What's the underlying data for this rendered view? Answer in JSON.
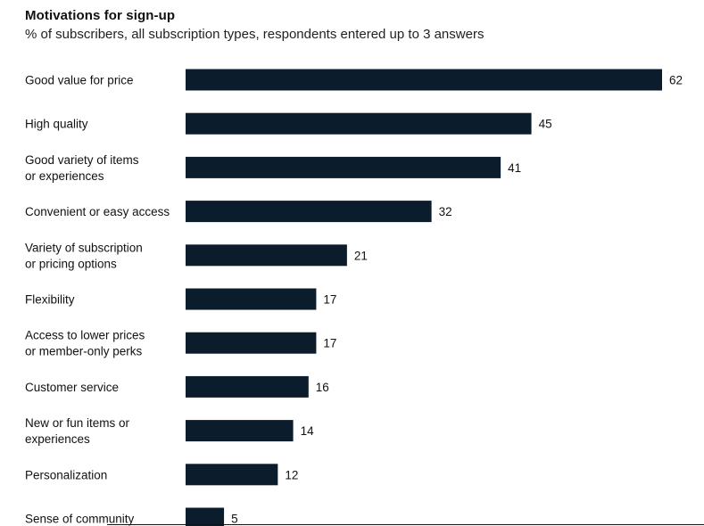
{
  "chart_data": {
    "type": "bar",
    "orientation": "horizontal",
    "title": "Motivations for sign-up",
    "subtitle": "% of subscribers, all subscription types, respondents entered up to 3 answers",
    "categories": [
      [
        "Good value for price"
      ],
      [
        "High quality"
      ],
      [
        "Good variety of items",
        "or experiences"
      ],
      [
        "Convenient or easy access"
      ],
      [
        "Variety of subscription",
        "or pricing options"
      ],
      [
        "Flexibility"
      ],
      [
        "Access to lower prices",
        "or member-only perks"
      ],
      [
        "Customer service"
      ],
      [
        "New or fun items or",
        "experiences"
      ],
      [
        "Personalization"
      ],
      [
        "Sense of community"
      ]
    ],
    "values": [
      62,
      45,
      41,
      32,
      21,
      17,
      17,
      16,
      14,
      12,
      5
    ],
    "xlim": [
      0,
      62
    ],
    "grid": false,
    "legend": "none",
    "bar_color": "#0b1c2c"
  }
}
